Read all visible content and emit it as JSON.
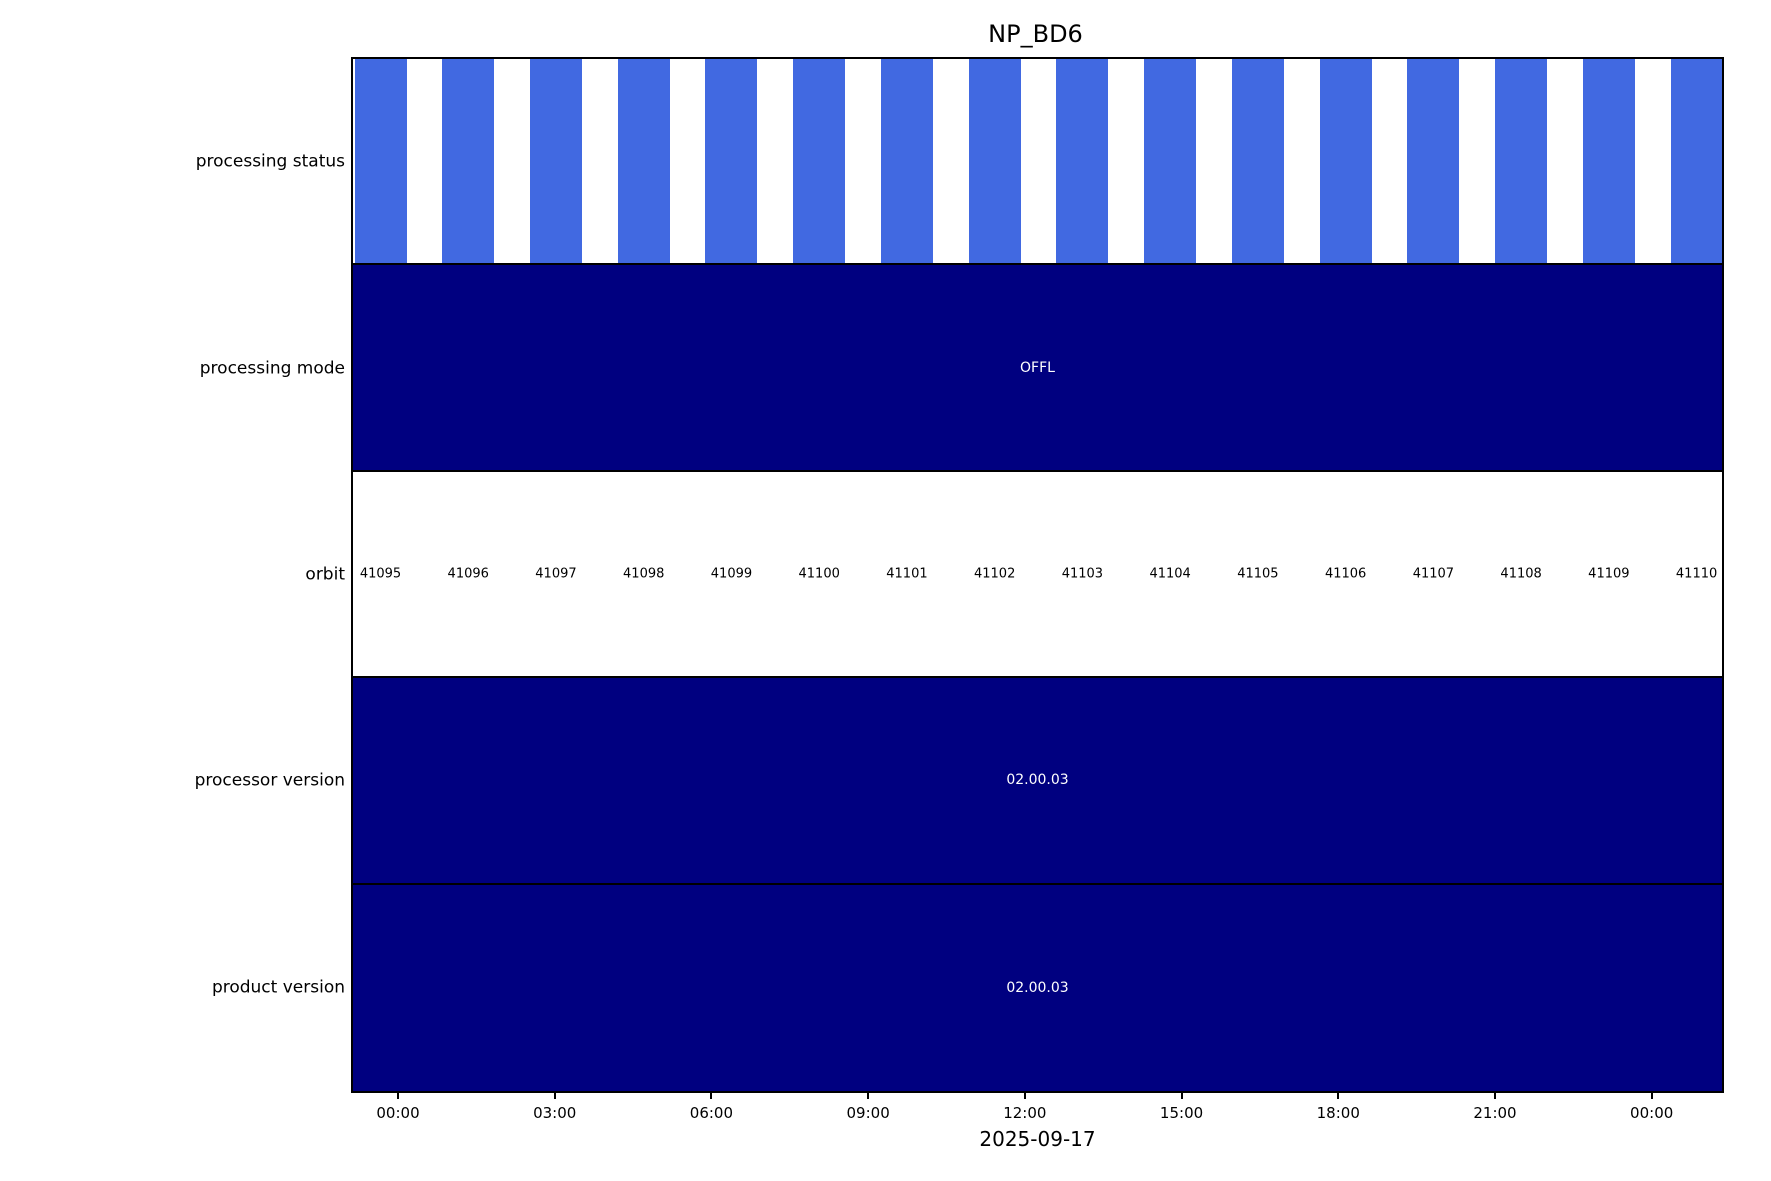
{
  "title": "NP_BD6",
  "colors": {
    "status_bar_blue": "#4169E1",
    "band_navy": "#000080",
    "band_text_white": "#ffffff",
    "axis_black": "#000000",
    "background_white": "#ffffff"
  },
  "rows": [
    {
      "label": "processing status"
    },
    {
      "label": "processing mode",
      "value": "OFFL"
    },
    {
      "label": "orbit"
    },
    {
      "label": "processor version",
      "value": "02.00.03"
    },
    {
      "label": "product version",
      "value": "02.00.03"
    }
  ],
  "orbits": [
    "41095",
    "41096",
    "41097",
    "41098",
    "41099",
    "41100",
    "41101",
    "41102",
    "41103",
    "41104",
    "41105",
    "41106",
    "41107",
    "41108",
    "41109",
    "41110"
  ],
  "x_axis": {
    "tick_labels": [
      "00:00",
      "03:00",
      "06:00",
      "09:00",
      "12:00",
      "15:00",
      "18:00",
      "21:00",
      "00:00"
    ],
    "label": "2025-09-17"
  },
  "chart_data": {
    "type": "bar",
    "subtype": "status-timeline",
    "title": "NP_BD6",
    "xlabel": "2025-09-17",
    "x_tick_labels": [
      "00:00",
      "03:00",
      "06:00",
      "09:00",
      "12:00",
      "15:00",
      "18:00",
      "21:00",
      "00:00"
    ],
    "x_tick_interval_hours": 3,
    "grid": false,
    "legend": false,
    "rows": [
      {
        "name": "processing status",
        "style": "one blue bar per orbit, white gaps between",
        "bar_color": "#4169E1",
        "bar_count": 16,
        "orbits_covered": [
          41095,
          41096,
          41097,
          41098,
          41099,
          41100,
          41101,
          41102,
          41103,
          41104,
          41105,
          41106,
          41107,
          41108,
          41109,
          41110
        ]
      },
      {
        "name": "processing mode",
        "value": "OFFL",
        "band_color": "#000080",
        "text_color": "#ffffff",
        "extent": "full time range"
      },
      {
        "name": "orbit",
        "values": [
          41095,
          41096,
          41097,
          41098,
          41099,
          41100,
          41101,
          41102,
          41103,
          41104,
          41105,
          41106,
          41107,
          41108,
          41109,
          41110
        ],
        "band_color": "#ffffff",
        "text_color": "#000000"
      },
      {
        "name": "processor version",
        "value": "02.00.03",
        "band_color": "#000080",
        "text_color": "#ffffff",
        "extent": "full time range"
      },
      {
        "name": "product version",
        "value": "02.00.03",
        "band_color": "#000080",
        "text_color": "#ffffff",
        "extent": "full time range"
      }
    ]
  }
}
